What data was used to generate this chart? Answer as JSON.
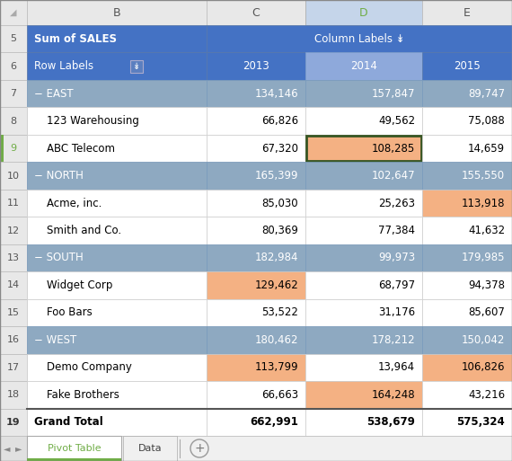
{
  "col_header_bg": "#4472C4",
  "region_row_bg": "#8EA9C1",
  "highlight_orange": "#F4B183",
  "selected_border": "#375623",
  "col_d_header_bg": "#8EA9DB",
  "rows": [
    {
      "row": 5,
      "label": "Sum of SALES",
      "c": "",
      "d": "Column Labels ↡",
      "e": "",
      "type": "header_top"
    },
    {
      "row": 6,
      "label": "Row Labels",
      "c": "2013",
      "d": "2014",
      "e": "2015",
      "type": "header_col"
    },
    {
      "row": 7,
      "label": "− EAST",
      "c": "134,146",
      "d": "157,847",
      "e": "89,747",
      "type": "region"
    },
    {
      "row": 8,
      "label": "123 Warehousing",
      "c": "66,826",
      "d": "49,562",
      "e": "75,088",
      "type": "data",
      "hl_c": false,
      "hl_d": false,
      "hl_e": false
    },
    {
      "row": 9,
      "label": "ABC Telecom",
      "c": "67,320",
      "d": "108,285",
      "e": "14,659",
      "type": "data",
      "hl_c": false,
      "hl_d": true,
      "hl_e": false,
      "selected_d": true
    },
    {
      "row": 10,
      "label": "− NORTH",
      "c": "165,399",
      "d": "102,647",
      "e": "155,550",
      "type": "region"
    },
    {
      "row": 11,
      "label": "Acme, inc.",
      "c": "85,030",
      "d": "25,263",
      "e": "113,918",
      "type": "data",
      "hl_c": false,
      "hl_d": false,
      "hl_e": true
    },
    {
      "row": 12,
      "label": "Smith and Co.",
      "c": "80,369",
      "d": "77,384",
      "e": "41,632",
      "type": "data",
      "hl_c": false,
      "hl_d": false,
      "hl_e": false
    },
    {
      "row": 13,
      "label": "− SOUTH",
      "c": "182,984",
      "d": "99,973",
      "e": "179,985",
      "type": "region"
    },
    {
      "row": 14,
      "label": "Widget Corp",
      "c": "129,462",
      "d": "68,797",
      "e": "94,378",
      "type": "data",
      "hl_c": true,
      "hl_d": false,
      "hl_e": false
    },
    {
      "row": 15,
      "label": "Foo Bars",
      "c": "53,522",
      "d": "31,176",
      "e": "85,607",
      "type": "data",
      "hl_c": false,
      "hl_d": false,
      "hl_e": false
    },
    {
      "row": 16,
      "label": "− WEST",
      "c": "180,462",
      "d": "178,212",
      "e": "150,042",
      "type": "region"
    },
    {
      "row": 17,
      "label": "Demo Company",
      "c": "113,799",
      "d": "13,964",
      "e": "106,826",
      "type": "data",
      "hl_c": true,
      "hl_d": false,
      "hl_e": true
    },
    {
      "row": 18,
      "label": "Fake Brothers",
      "c": "66,663",
      "d": "164,248",
      "e": "43,216",
      "type": "data",
      "hl_c": false,
      "hl_d": true,
      "hl_e": false
    },
    {
      "row": 19,
      "label": "Grand Total",
      "c": "662,991",
      "d": "538,679",
      "e": "575,324",
      "type": "grand_total"
    }
  ]
}
